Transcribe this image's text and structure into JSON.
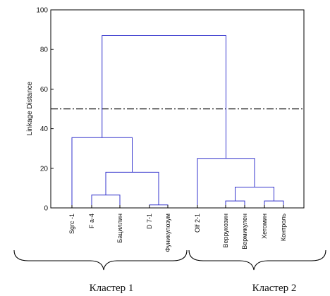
{
  "chart_data": {
    "type": "dendrogram",
    "ylabel": "Linkage Distance",
    "ylim": [
      0,
      100
    ],
    "yticks": [
      0,
      20,
      40,
      60,
      80,
      100
    ],
    "grid": false,
    "cut_line": {
      "value": 50,
      "style": "dash-dot"
    },
    "leaves": [
      "Sgrc -1",
      "F a-4",
      "Бациллин",
      "D 7-1",
      "Фуникулозум",
      "Olf 2-1",
      "Веррукозин",
      "Вермикулен",
      "Хетомин",
      "Контроль"
    ],
    "merges": [
      {
        "left": "F a-4",
        "right": "Бациллин",
        "height": 6.5
      },
      {
        "left": "D 7-1",
        "right": "Фуникулозум",
        "height": 1.5
      },
      {
        "left": "F a-4 + Бациллин",
        "right": "D 7-1 + Фуникулозум",
        "height": 18
      },
      {
        "left": "Sgrc -1",
        "right": "F a-4 + Бациллин + D 7-1 + Фуникулозум",
        "height": 35.5
      },
      {
        "left": "Веррукозин",
        "right": "Вермикулен",
        "height": 3.5
      },
      {
        "left": "Хетомин",
        "right": "Контроль",
        "height": 3.5
      },
      {
        "left": "Веррукозин + Вермикулен",
        "right": "Хетомин + Контроль",
        "height": 10.5
      },
      {
        "left": "Olf 2-1",
        "right": "Веррукозин + Вермикулен + Хетомин + Контроль",
        "height": 25
      },
      {
        "left": "Cluster 1",
        "right": "Cluster 2",
        "height": 87
      }
    ],
    "clusters": [
      {
        "label": "Кластер 1",
        "members": [
          "Sgrc -1",
          "F a-4",
          "Бациллин",
          "D 7-1",
          "Фуникулозум"
        ]
      },
      {
        "label": "Кластер 2",
        "members": [
          "Olf 2-1",
          "Веррукозин",
          "Вермикулен",
          "Хетомин",
          "Контроль"
        ]
      }
    ],
    "colors": {
      "links": "#3333cc",
      "frame": "#000000",
      "cut_line": "#000000"
    }
  }
}
